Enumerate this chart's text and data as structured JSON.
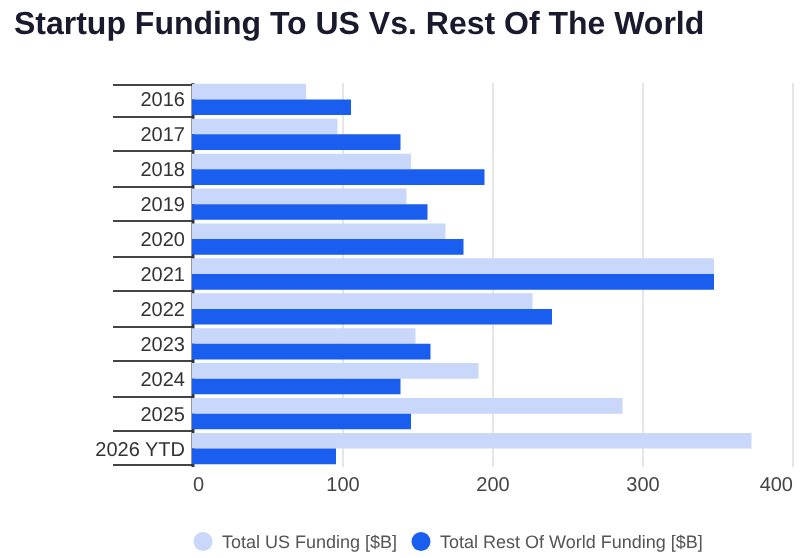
{
  "chart_data": {
    "type": "bar",
    "orientation": "horizontal",
    "title": "Startup Funding To US Vs. Rest Of The World",
    "categories": [
      "2016",
      "2017",
      "2018",
      "2019",
      "2020",
      "2021",
      "2022",
      "2023",
      "2024",
      "2025",
      "2026 YTD"
    ],
    "series": [
      {
        "name": "Total US Funding [$B]",
        "color": "#c9d7fb",
        "values": [
          76,
          97,
          146,
          143,
          169,
          348,
          227,
          149,
          191,
          287,
          373
        ]
      },
      {
        "name": "Total Rest Of World Funding [$B]",
        "color": "#1a5ef0",
        "values": [
          106,
          139,
          195,
          157,
          181,
          348,
          240,
          159,
          139,
          146,
          96
        ]
      }
    ],
    "xlim": [
      0,
      400
    ],
    "xticks": [
      0,
      100,
      200,
      300,
      400
    ],
    "grid": "x",
    "legend": "bottom"
  }
}
